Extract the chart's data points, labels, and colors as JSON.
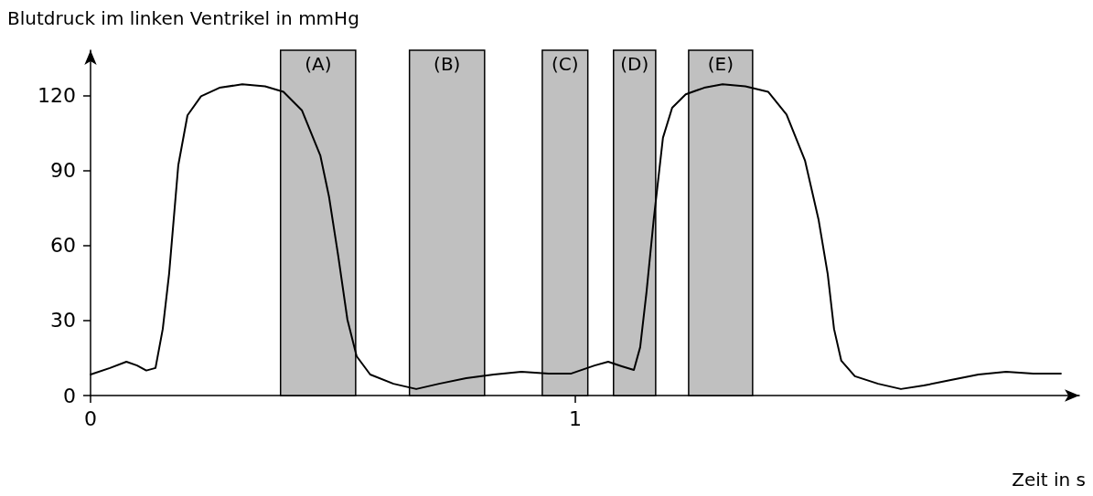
{
  "chart_data": {
    "type": "line",
    "ylabel": "Blutdruck im linken Ventrikel in mmHg",
    "xlabel": "Zeit in s",
    "x": [
      0,
      0.04,
      0.074,
      0.096,
      0.115,
      0.134,
      0.149,
      0.162,
      0.181,
      0.2,
      0.228,
      0.266,
      0.313,
      0.36,
      0.398,
      0.436,
      0.474,
      0.492,
      0.511,
      0.53,
      0.549,
      0.577,
      0.625,
      0.672,
      0.719,
      0.775,
      0.832,
      0.889,
      0.945,
      0.992,
      1.04,
      1.068,
      1.096,
      1.121,
      1.134,
      1.147,
      1.162,
      1.181,
      1.2,
      1.228,
      1.266,
      1.304,
      1.351,
      1.398,
      1.436,
      1.474,
      1.502,
      1.521,
      1.534,
      1.549,
      1.577,
      1.625,
      1.672,
      1.719,
      1.775,
      1.832,
      1.889,
      1.945,
      2.002
    ],
    "series": [
      {
        "color": "#000000",
        "values": [
          8.4,
          11,
          13.5,
          12,
          10,
          11,
          26.6,
          48.5,
          92,
          112,
          119.6,
          123,
          124.4,
          123.6,
          121.4,
          114,
          96,
          79.5,
          55.8,
          30.3,
          15.7,
          8.4,
          4.7,
          2.6,
          4.7,
          6.9,
          8.4,
          9.5,
          8.8,
          8.8,
          12,
          13.5,
          11.7,
          10.2,
          19.3,
          41.2,
          70.4,
          103,
          115,
          120.4,
          123,
          124.4,
          123.6,
          121.4,
          112.3,
          94,
          70.4,
          48.5,
          26.6,
          13.9,
          7.7,
          4.7,
          2.6,
          4,
          6.2,
          8.4,
          9.5,
          8.8,
          8.8
        ]
      }
    ],
    "xlim": [
      0,
      2.04
    ],
    "xticks": [
      0,
      1
    ],
    "ylim": [
      0,
      138
    ],
    "yticks": [
      0,
      30,
      60,
      90,
      120
    ],
    "bands": [
      {
        "axis": "x",
        "from": 0.392,
        "to": 0.547,
        "label": "(A)",
        "color": "#c0c0c0"
      },
      {
        "axis": "x",
        "from": 0.658,
        "to": 0.813,
        "label": "(B)",
        "color": "#c0c0c0"
      },
      {
        "axis": "x",
        "from": 0.932,
        "to": 1.026,
        "label": "(C)",
        "color": "#c0c0c0"
      },
      {
        "axis": "x",
        "from": 1.079,
        "to": 1.166,
        "label": "(D)",
        "color": "#c0c0c0"
      },
      {
        "axis": "x",
        "from": 1.234,
        "to": 1.366,
        "label": "(E)",
        "color": "#c0c0c0"
      }
    ],
    "grid": false,
    "marker": "none",
    "line_style": "solid"
  }
}
